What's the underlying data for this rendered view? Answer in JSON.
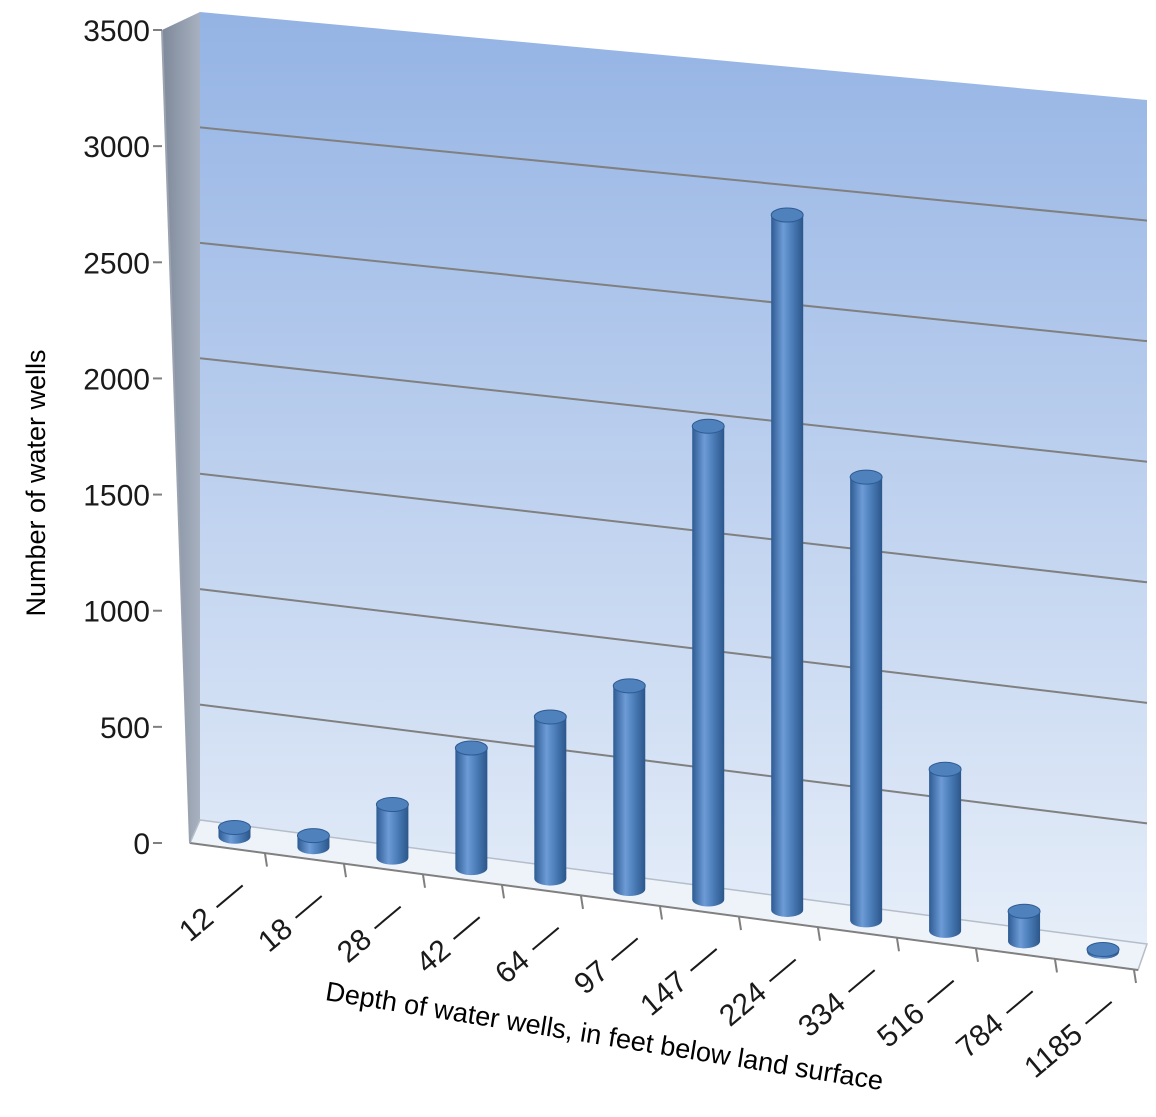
{
  "chart_data": {
    "type": "bar",
    "style": "3d-cylinder",
    "categories": [
      "12",
      "18",
      "28",
      "42",
      "64",
      "97",
      "147",
      "224",
      "334",
      "516",
      "784",
      "1185"
    ],
    "values": [
      40,
      50,
      230,
      520,
      700,
      880,
      2050,
      3010,
      1920,
      700,
      130,
      10
    ],
    "xlabel": "Depth of water wells, in feet below land surface",
    "ylabel": "Number of water wells",
    "ylim": [
      0,
      3500
    ],
    "yticks": [
      0,
      500,
      1000,
      1500,
      2000,
      2500,
      3000,
      3500
    ],
    "grid": true,
    "legend": "none",
    "colors": {
      "bar": "#4f81bd",
      "bar_dark": "#2e5b92",
      "bar_light": "#8fb4e3",
      "wall_top": "#94b3e4",
      "wall_bottom": "#e6eef9",
      "side_wall": "#8f9aaa",
      "gridline": "#808080"
    }
  }
}
